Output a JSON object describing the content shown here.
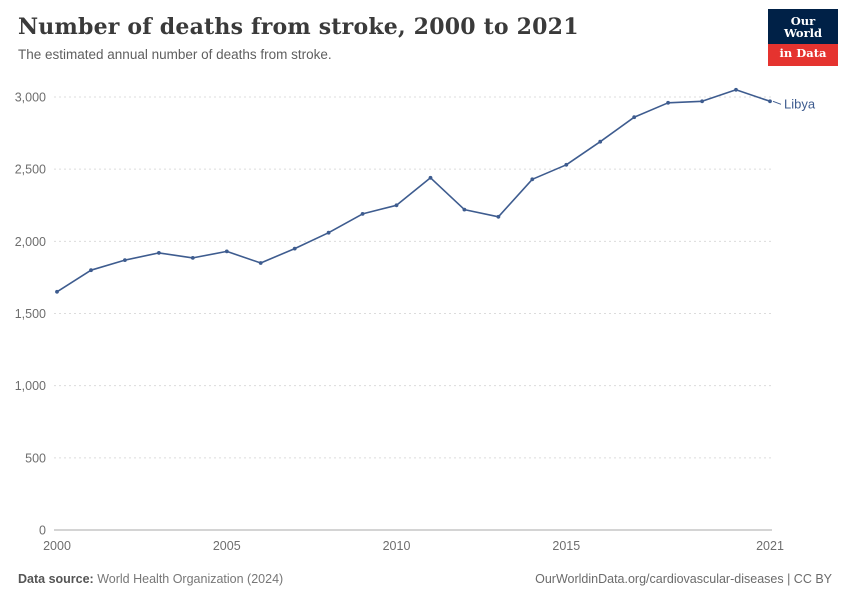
{
  "header": {
    "title": "Number of deaths from stroke, 2000 to 2021",
    "subtitle": "The estimated annual number of deaths from stroke."
  },
  "logo": {
    "line1": "Our World",
    "line2": "in Data",
    "bg_color": "#002147",
    "accent_color": "#e5332f"
  },
  "chart_data": {
    "type": "line",
    "title": "Number of deaths from stroke, 2000 to 2021",
    "xlabel": "",
    "ylabel": "",
    "x": [
      2000,
      2001,
      2002,
      2003,
      2004,
      2005,
      2006,
      2007,
      2008,
      2009,
      2010,
      2011,
      2012,
      2013,
      2014,
      2015,
      2016,
      2017,
      2018,
      2019,
      2020,
      2021
    ],
    "series": [
      {
        "name": "Libya",
        "color": "#3e5c8f",
        "values": [
          1650,
          1800,
          1870,
          1920,
          1885,
          1930,
          1850,
          1950,
          2060,
          2190,
          2250,
          2440,
          2220,
          2170,
          2430,
          2530,
          2690,
          2860,
          2960,
          2970,
          3050,
          2970
        ]
      }
    ],
    "ylim": [
      0,
      3000
    ],
    "yticks": [
      0,
      500,
      1000,
      1500,
      2000,
      2500,
      3000
    ],
    "xticks": [
      2000,
      2005,
      2010,
      2015,
      2021
    ],
    "grid": true,
    "legend_position": "end-of-line-label",
    "grid_color": "#dcdcdc",
    "axis_color": "#a8a8a8",
    "tick_label_color": "#6e6e6e"
  },
  "footer": {
    "source_label": "Data source:",
    "source_text": "World Health Organization (2024)",
    "credit": "OurWorldinData.org/cardiovascular-diseases | CC BY"
  }
}
